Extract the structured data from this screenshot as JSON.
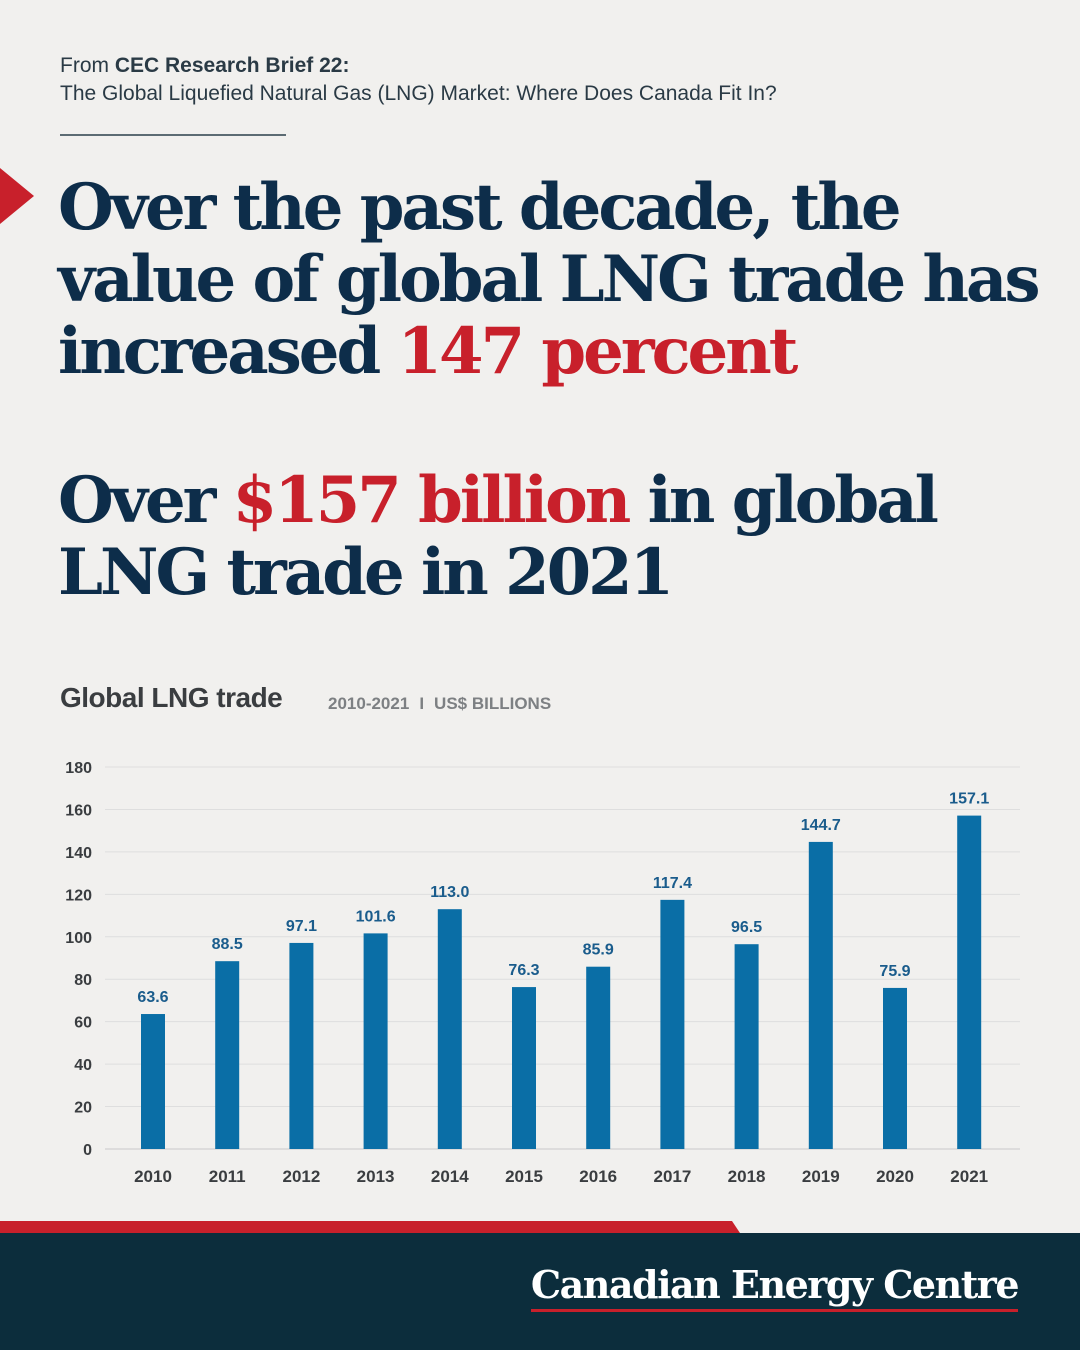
{
  "source": {
    "prefix": "From",
    "brief": "CEC Research Brief 22:",
    "title": "The Global Liquefied Natural Gas (LNG) Market: Where Does Canada Fit In?"
  },
  "headline1": {
    "part1": "Over the past decade, the value of global LNG trade has increased",
    "highlight": "147 percent"
  },
  "headline2": {
    "part1": "Over",
    "highlight": "$157 billion",
    "part2": "in global LNG trade in 2021"
  },
  "chart_title": "Global LNG trade",
  "chart_subtitle": {
    "years": "2010-2021",
    "sep": "I",
    "units": "US$ BILLIONS"
  },
  "colors": {
    "bar": "#0a6ea6",
    "label": "#1a5c8c",
    "accent_red": "#c8202b",
    "navy": "#0d2d4a",
    "footer": "#0c2d3c"
  },
  "chart_data": {
    "type": "bar",
    "title": "Global LNG trade",
    "categories": [
      "2010",
      "2011",
      "2012",
      "2013",
      "2014",
      "2015",
      "2016",
      "2017",
      "2018",
      "2019",
      "2020",
      "2021"
    ],
    "values": [
      63.6,
      88.5,
      97.1,
      101.6,
      113.0,
      76.3,
      85.9,
      117.4,
      96.5,
      144.7,
      75.9,
      157.1
    ],
    "value_labels": [
      "63.6",
      "88.5",
      "97.1",
      "101.6",
      "113.0",
      "76.3",
      "85.9",
      "117.4",
      "96.5",
      "144.7",
      "75.9",
      "157.1"
    ],
    "ylim": [
      0,
      180
    ],
    "yticks": [
      0,
      20,
      40,
      60,
      80,
      100,
      120,
      140,
      160,
      180
    ],
    "grid": true
  },
  "footer": {
    "brand": "Canadian Energy Centre"
  }
}
